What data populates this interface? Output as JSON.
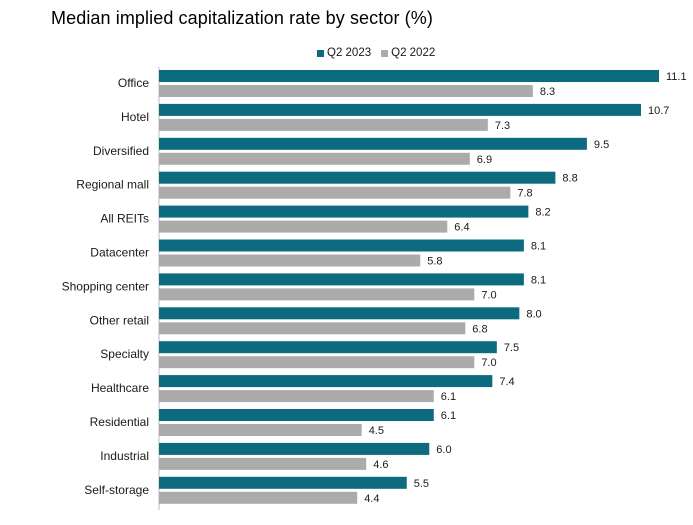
{
  "chart_data": {
    "type": "bar",
    "orientation": "horizontal",
    "title": "Median implied capitalization rate by sector (%)",
    "categories": [
      "Office",
      "Hotel",
      "Diversified",
      "Regional mall",
      "All REITs",
      "Datacenter",
      "Shopping center",
      "Other retail",
      "Specialty",
      "Healthcare",
      "Residential",
      "Industrial",
      "Self-storage"
    ],
    "series": [
      {
        "name": "Q2 2023",
        "color": "#0d6b7f",
        "values": [
          11.1,
          10.7,
          9.5,
          8.8,
          8.2,
          8.1,
          8.1,
          8.0,
          7.5,
          7.4,
          6.1,
          6.0,
          5.5
        ]
      },
      {
        "name": "Q2 2022",
        "color": "#ababab",
        "values": [
          8.3,
          7.3,
          6.9,
          7.8,
          6.4,
          5.8,
          7.0,
          6.8,
          7.0,
          6.1,
          4.5,
          4.6,
          4.4
        ]
      }
    ],
    "xlim": [
      0,
      11.1
    ],
    "legend_position": "top-center",
    "grid": false
  }
}
